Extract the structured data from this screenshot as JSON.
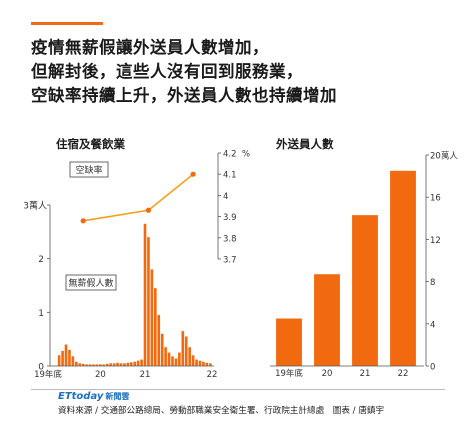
{
  "headline": {
    "line1": "疫情無薪假讓外送員人數增加，",
    "line2": "但解封後，這些人沒有回到服務業，",
    "line3": "空缺率持續上升，外送員人數也持續增加"
  },
  "colors": {
    "accent": "#ef6c16",
    "bar": "#f26a0f",
    "line": "#f4a11c"
  },
  "chart_data": [
    {
      "type": "bar",
      "title": "住宿及餐飲業",
      "series": [
        {
          "name": "無薪假人數",
          "axis": "left",
          "values": [
            0.0,
            0.2,
            0.28,
            0.4,
            0.3,
            0.18,
            0.08,
            0.05,
            0.04,
            0.03,
            0.03,
            0.03,
            0.03,
            0.03,
            0.03,
            0.04,
            0.05,
            0.05,
            0.06,
            0.05,
            0.05,
            0.06,
            0.07,
            0.08,
            0.1,
            0.12,
            2.65,
            2.4,
            1.8,
            1.45,
            0.95,
            0.6,
            0.35,
            0.25,
            0.18,
            0.14,
            0.25,
            0.65,
            0.55,
            0.35,
            0.2,
            0.12,
            0.1,
            0.08,
            0.06,
            0.05
          ]
        },
        {
          "name": "空缺率",
          "type": "line",
          "axis": "right",
          "unit": "%",
          "x_index": [
            8,
            27,
            40
          ],
          "values": [
            3.88,
            3.93,
            4.1
          ]
        }
      ],
      "x_tick_labels": [
        "19年底",
        "20",
        "21",
        "22"
      ],
      "left_axis": {
        "unit_label": "3萬人",
        "ticks": [
          "0",
          "1",
          "2"
        ],
        "ylim": [
          0,
          3
        ]
      },
      "right_axis": {
        "ticks": [
          "3.7",
          "3.8",
          "3.9",
          "4",
          "4.1",
          "4.2"
        ],
        "unit": "%",
        "ylim": [
          3.7,
          4.2
        ]
      }
    },
    {
      "type": "bar",
      "title": "外送員人數",
      "categories": [
        "19年底",
        "20",
        "21",
        "22"
      ],
      "values": [
        4.5,
        8.7,
        14.3,
        18.5
      ],
      "right_axis": {
        "ticks": [
          "0",
          "4",
          "8",
          "12",
          "16",
          "20萬人"
        ],
        "ylim": [
          0,
          20
        ]
      }
    }
  ],
  "footer": {
    "brand": "ETtoday",
    "brand_sub": "新聞雲",
    "source": "資料來源 / 交通部公路總局、勞動部職業安全衛生署、行政院主計總處　圖表 / 唐鎮宇"
  }
}
